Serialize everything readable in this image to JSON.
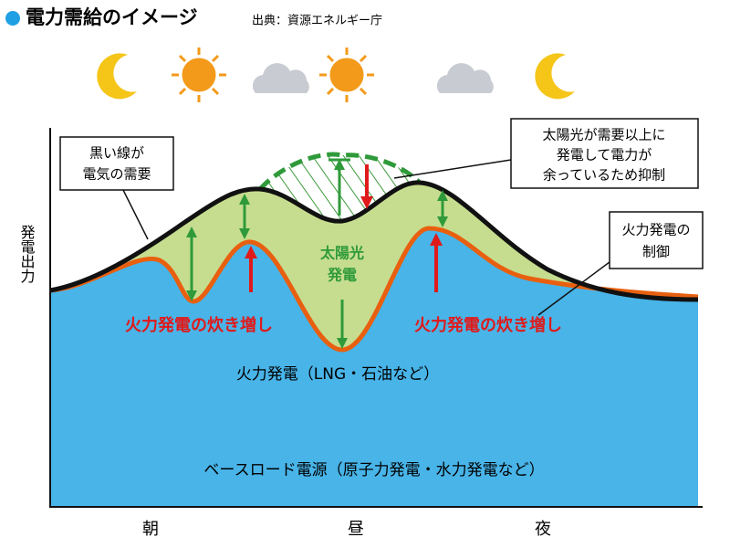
{
  "header": {
    "title": "電力需給のイメージ",
    "source": "出典：資源エネルギー庁"
  },
  "axis": {
    "y_label": "発電出力",
    "x_labels": [
      "朝",
      "昼",
      "夜"
    ]
  },
  "callouts": [
    {
      "lines": [
        "黒い線が",
        "電気の需要"
      ]
    },
    {
      "lines": [
        "太陽光が需要以上に",
        "発電して電力が",
        "余っているため抑制"
      ]
    },
    {
      "lines": [
        "火力発電の",
        "制御"
      ]
    }
  ],
  "labels": {
    "solar": [
      "太陽光",
      "発電"
    ],
    "thermal_increase_left": "火力発電の炊き増し",
    "thermal_increase_right": "火力発電の炊き増し",
    "thermal": "火力発電（LNG・石油など）",
    "baseload": "ベースロード電源（原子力発電・水力発電など）"
  }
}
